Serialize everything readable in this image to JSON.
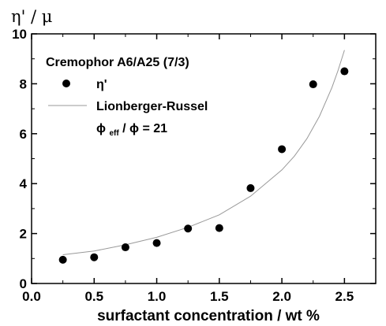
{
  "chart_data": {
    "type": "scatter",
    "ylabel": "η' / μ",
    "xlabel": "surfactant concentration / wt %",
    "xlim": [
      0.0,
      2.75
    ],
    "ylim": [
      0,
      10
    ],
    "xticks": [
      0.0,
      0.5,
      1.0,
      1.5,
      2.0,
      2.5
    ],
    "xtick_labels": [
      "0.0",
      "0.5",
      "1.0",
      "1.5",
      "2.0",
      "2.5"
    ],
    "yticks": [
      0,
      2,
      4,
      6,
      8,
      10
    ],
    "ytick_labels": [
      "0",
      "2",
      "4",
      "6",
      "8",
      "10"
    ],
    "grid": false,
    "legend_title": "Cremophor A6/A25 (7/3)",
    "legend_placement": "top-left",
    "series": [
      {
        "name": "η'",
        "kind": "scatter",
        "color": "#000000",
        "x": [
          0.25,
          0.5,
          0.75,
          1.0,
          1.25,
          1.5,
          1.75,
          2.0,
          2.25,
          2.5
        ],
        "y": [
          0.95,
          1.05,
          1.45,
          1.62,
          2.2,
          2.22,
          3.82,
          5.38,
          7.98,
          8.5
        ]
      },
      {
        "name": "Lionberger-Russel",
        "kind": "line",
        "color": "#999999",
        "x": [
          0.25,
          0.5,
          0.75,
          1.0,
          1.25,
          1.5,
          1.75,
          2.0,
          2.1,
          2.2,
          2.3,
          2.4,
          2.45,
          2.5
        ],
        "y": [
          1.15,
          1.3,
          1.55,
          1.85,
          2.25,
          2.75,
          3.5,
          4.55,
          5.1,
          5.8,
          6.7,
          7.85,
          8.55,
          9.35
        ]
      }
    ],
    "annotation": {
      "phi": "ϕ",
      "sub": "eff",
      "rest": " / ϕ = 21"
    }
  }
}
